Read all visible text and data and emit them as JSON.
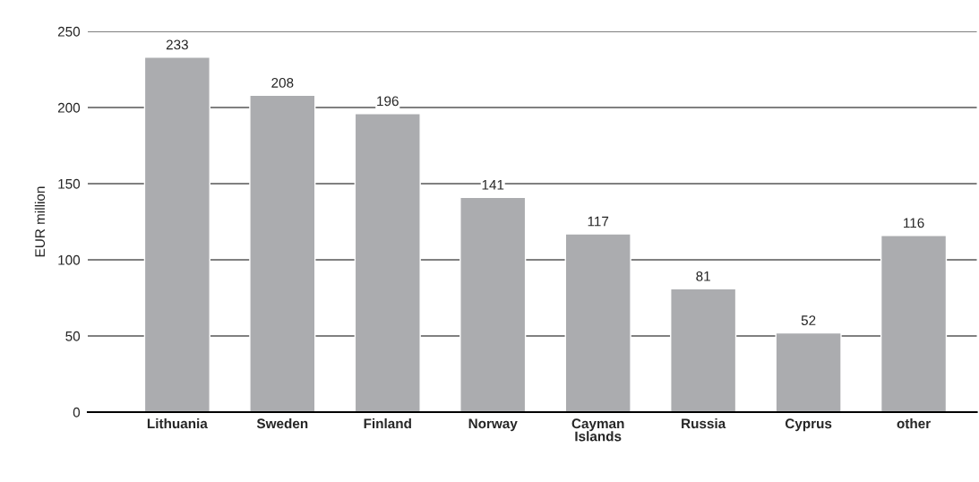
{
  "chart_data": {
    "type": "bar",
    "ylabel": "EUR million",
    "categories": [
      "Lithuania",
      "Sweden",
      "Finland",
      "Norway",
      "Cayman\nIslands",
      "Russia",
      "Cyprus",
      "other"
    ],
    "values": [
      233,
      208,
      196,
      141,
      117,
      81,
      52,
      116
    ],
    "color": "#abacaf",
    "ylim": [
      0,
      250
    ],
    "yticks": [
      0,
      50,
      100,
      150,
      200,
      250
    ],
    "grid": "y",
    "data_labels": true
  }
}
